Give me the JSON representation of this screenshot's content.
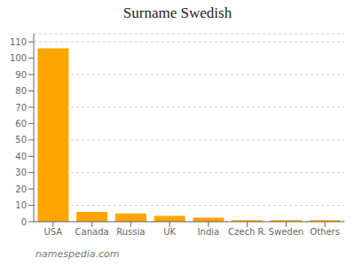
{
  "chart_data": {
    "type": "bar",
    "title": "Surname Swedish",
    "categories": [
      "USA",
      "Canada",
      "Russia",
      "UK",
      "India",
      "Czech R.",
      "Sweden",
      "Others"
    ],
    "values": [
      106,
      6,
      5,
      3.5,
      2.5,
      1,
      1,
      1
    ],
    "color": "#FFA500",
    "ylim": [
      0,
      115
    ],
    "yticks": [
      0,
      10,
      20,
      30,
      40,
      50,
      60,
      70,
      80,
      90,
      100,
      110
    ],
    "grid": true,
    "annotations": [
      "namespedia.com"
    ]
  }
}
